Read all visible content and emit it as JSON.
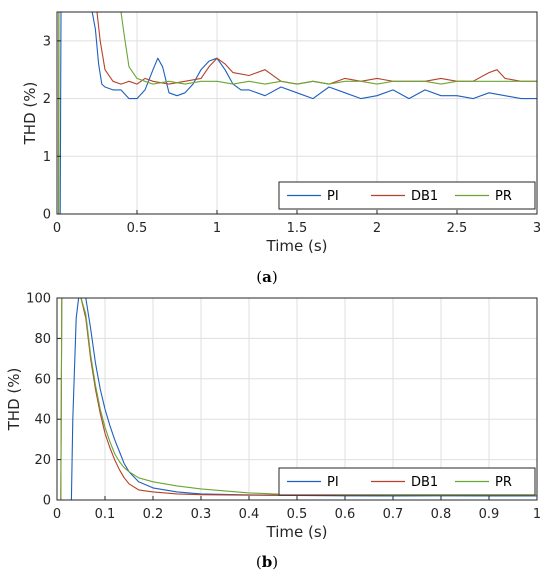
{
  "colors": {
    "PI": "#1f5fbf",
    "DB1": "#b5412a",
    "PR": "#6aa634"
  },
  "chart_data": [
    {
      "type": "line",
      "caption": "(a)",
      "caption_bold": "a",
      "xlabel": "Time (s)",
      "ylabel": "THD (%)",
      "xlim": [
        0,
        3
      ],
      "ylim": [
        0,
        3.5
      ],
      "xticks": [
        0,
        0.5,
        1,
        1.5,
        2,
        2.5,
        3
      ],
      "xtick_labels": [
        "0",
        "0.5",
        "1",
        "1.5",
        "2",
        "2.5",
        "3"
      ],
      "yticks": [
        0,
        1,
        2,
        3
      ],
      "ytick_labels": [
        "0",
        "1",
        "2",
        "3"
      ],
      "grid": true,
      "legend": "bottom-right, horizontal",
      "series": [
        {
          "name": "PI",
          "x": [
            0.02,
            0.025,
            0.03,
            0.22,
            0.24,
            0.26,
            0.28,
            0.3,
            0.35,
            0.4,
            0.45,
            0.5,
            0.55,
            0.6,
            0.63,
            0.66,
            0.7,
            0.75,
            0.8,
            0.85,
            0.9,
            0.95,
            1.0,
            1.05,
            1.1,
            1.15,
            1.2,
            1.3,
            1.4,
            1.5,
            1.6,
            1.7,
            1.8,
            1.9,
            2.0,
            2.1,
            2.2,
            2.3,
            2.4,
            2.5,
            2.6,
            2.7,
            2.8,
            2.9,
            3.0
          ],
          "y": [
            0,
            3.5,
            3.5,
            3.5,
            3.2,
            2.6,
            2.25,
            2.2,
            2.15,
            2.15,
            2.0,
            2.0,
            2.15,
            2.5,
            2.7,
            2.55,
            2.1,
            2.05,
            2.1,
            2.25,
            2.5,
            2.65,
            2.7,
            2.5,
            2.25,
            2.15,
            2.15,
            2.05,
            2.2,
            2.1,
            2.0,
            2.2,
            2.1,
            2.0,
            2.05,
            2.15,
            2.0,
            2.15,
            2.05,
            2.05,
            2.0,
            2.1,
            2.05,
            2.0,
            2.0
          ]
        },
        {
          "name": "DB1",
          "x": [
            0.01,
            0.012,
            0.015,
            0.25,
            0.27,
            0.3,
            0.35,
            0.4,
            0.45,
            0.5,
            0.55,
            0.6,
            0.7,
            0.8,
            0.9,
            0.95,
            1.0,
            1.05,
            1.1,
            1.2,
            1.3,
            1.4,
            1.5,
            1.6,
            1.7,
            1.8,
            1.9,
            2.0,
            2.1,
            2.2,
            2.3,
            2.4,
            2.5,
            2.6,
            2.7,
            2.75,
            2.8,
            2.9,
            3.0
          ],
          "y": [
            0,
            3.5,
            3.5,
            3.5,
            3.0,
            2.5,
            2.3,
            2.25,
            2.3,
            2.25,
            2.35,
            2.3,
            2.25,
            2.3,
            2.35,
            2.55,
            2.7,
            2.6,
            2.45,
            2.4,
            2.5,
            2.3,
            2.25,
            2.3,
            2.25,
            2.35,
            2.3,
            2.35,
            2.3,
            2.3,
            2.3,
            2.35,
            2.3,
            2.3,
            2.45,
            2.5,
            2.35,
            2.3,
            2.3
          ]
        },
        {
          "name": "PR",
          "x": [
            0.01,
            0.012,
            0.015,
            0.4,
            0.42,
            0.45,
            0.5,
            0.55,
            0.6,
            0.7,
            0.8,
            0.9,
            1.0,
            1.1,
            1.2,
            1.3,
            1.4,
            1.5,
            1.6,
            1.7,
            1.8,
            1.9,
            2.0,
            2.1,
            2.2,
            2.3,
            2.4,
            2.5,
            2.6,
            2.7,
            2.8,
            2.9,
            3.0
          ],
          "y": [
            0,
            3.5,
            3.5,
            3.5,
            3.1,
            2.55,
            2.35,
            2.3,
            2.25,
            2.3,
            2.25,
            2.3,
            2.3,
            2.25,
            2.3,
            2.25,
            2.3,
            2.25,
            2.3,
            2.25,
            2.3,
            2.3,
            2.25,
            2.3,
            2.3,
            2.3,
            2.25,
            2.3,
            2.3,
            2.3,
            2.3,
            2.3,
            2.3
          ]
        }
      ]
    },
    {
      "type": "line",
      "caption": "(b)",
      "caption_bold": "b",
      "xlabel": "Time (s)",
      "ylabel": "THD (%)",
      "xlim": [
        0,
        1
      ],
      "ylim": [
        0,
        100
      ],
      "xticks": [
        0,
        0.1,
        0.2,
        0.3,
        0.4,
        0.5,
        0.6,
        0.7,
        0.8,
        0.9,
        1
      ],
      "xtick_labels": [
        "0",
        "0.1",
        "0.2",
        "0.3",
        "0.4",
        "0.5",
        "0.6",
        "0.7",
        "0.8",
        "0.9",
        "1"
      ],
      "yticks": [
        0,
        20,
        40,
        60,
        80,
        100
      ],
      "ytick_labels": [
        "0",
        "20",
        "40",
        "60",
        "80",
        "100"
      ],
      "grid": true,
      "legend": "bottom-right, horizontal",
      "series": [
        {
          "name": "PI",
          "x": [
            0.0,
            0.03,
            0.033,
            0.04,
            0.045,
            0.05,
            0.06,
            0.07,
            0.08,
            0.09,
            0.1,
            0.11,
            0.12,
            0.13,
            0.14,
            0.15,
            0.17,
            0.2,
            0.25,
            0.3,
            0.4,
            0.5,
            0.6,
            0.7,
            0.8,
            0.9,
            1.0
          ],
          "y": [
            0,
            0,
            40,
            90,
            100,
            100,
            100,
            85,
            68,
            55,
            45,
            37,
            30,
            24,
            18,
            14,
            9,
            6,
            4,
            3,
            2.5,
            2.3,
            2.1,
            2.0,
            2.1,
            2.0,
            2.0
          ]
        },
        {
          "name": "DB1",
          "x": [
            0.008,
            0.01,
            0.012,
            0.05,
            0.06,
            0.07,
            0.08,
            0.09,
            0.1,
            0.11,
            0.12,
            0.13,
            0.14,
            0.15,
            0.17,
            0.2,
            0.25,
            0.3,
            0.4,
            0.5,
            0.6,
            0.7,
            0.8,
            0.9,
            1.0
          ],
          "y": [
            0,
            100,
            100,
            100,
            90,
            70,
            55,
            43,
            33,
            26,
            20,
            15,
            11,
            8,
            5,
            4,
            3,
            2.6,
            2.4,
            2.3,
            2.3,
            2.3,
            2.3,
            2.3,
            2.3
          ]
        },
        {
          "name": "PR",
          "x": [
            0.008,
            0.01,
            0.012,
            0.05,
            0.06,
            0.07,
            0.08,
            0.09,
            0.1,
            0.11,
            0.12,
            0.13,
            0.14,
            0.15,
            0.17,
            0.2,
            0.25,
            0.3,
            0.35,
            0.4,
            0.45,
            0.5,
            0.6,
            0.7,
            0.8,
            0.9,
            1.0
          ],
          "y": [
            0,
            100,
            100,
            100,
            92,
            72,
            57,
            45,
            36,
            29,
            23,
            19,
            16,
            14,
            11,
            9,
            7,
            5.5,
            4.5,
            3.5,
            3,
            2.7,
            2.4,
            2.3,
            2.3,
            2.3,
            2.3
          ]
        }
      ]
    }
  ]
}
